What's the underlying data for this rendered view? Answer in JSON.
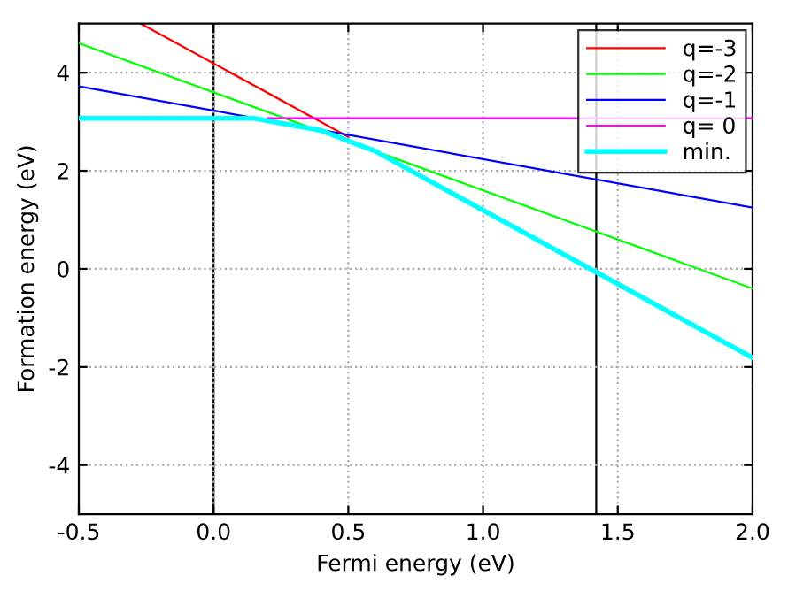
{
  "chart_data": {
    "type": "line",
    "xlabel": "Fermi energy (eV)",
    "ylabel": "Formation energy (eV)",
    "xlim": [
      -0.5,
      2.0
    ],
    "ylim": [
      -5,
      5
    ],
    "xticks": [
      {
        "value": -0.5,
        "label": "-0.5"
      },
      {
        "value": 0,
        "label": "0.0"
      },
      {
        "value": 0.5,
        "label": "0.5"
      },
      {
        "value": 1,
        "label": "1.0"
      },
      {
        "value": 1.5,
        "label": "1.5"
      },
      {
        "value": 2,
        "label": "2.0"
      }
    ],
    "yticks": [
      -4,
      -2,
      0,
      2,
      4
    ],
    "grid": true,
    "legend": "top right",
    "marker": "none",
    "line_style": "solid",
    "ref_lines": [
      {
        "axis": "x",
        "value": 0,
        "color": "#000000"
      },
      {
        "axis": "x",
        "value": 1.42,
        "color": "#000000"
      }
    ],
    "series": [
      {
        "name": "q=-3",
        "color": "#ff0000",
        "x": [
          -0.27,
          0.5
        ],
        "values": [
          5.0,
          2.69
        ]
      },
      {
        "name": "q=-2",
        "color": "#00ff00",
        "x": [
          -0.5,
          2.0
        ],
        "values": [
          4.6,
          -0.4
        ]
      },
      {
        "name": "q=-1",
        "color": "#0000ff",
        "x": [
          -0.5,
          2.0
        ],
        "values": [
          3.72,
          1.25
        ]
      },
      {
        "name": "q= 0",
        "color": "#ff00ff",
        "x": [
          0.2,
          2.0
        ],
        "values": [
          3.07,
          3.07
        ]
      },
      {
        "name": "min.",
        "color": "#00ffff",
        "x": [
          -0.5,
          0.15,
          0.4,
          0.6,
          2.0
        ],
        "values": [
          3.07,
          3.07,
          2.82,
          2.4,
          -1.81
        ]
      }
    ]
  }
}
